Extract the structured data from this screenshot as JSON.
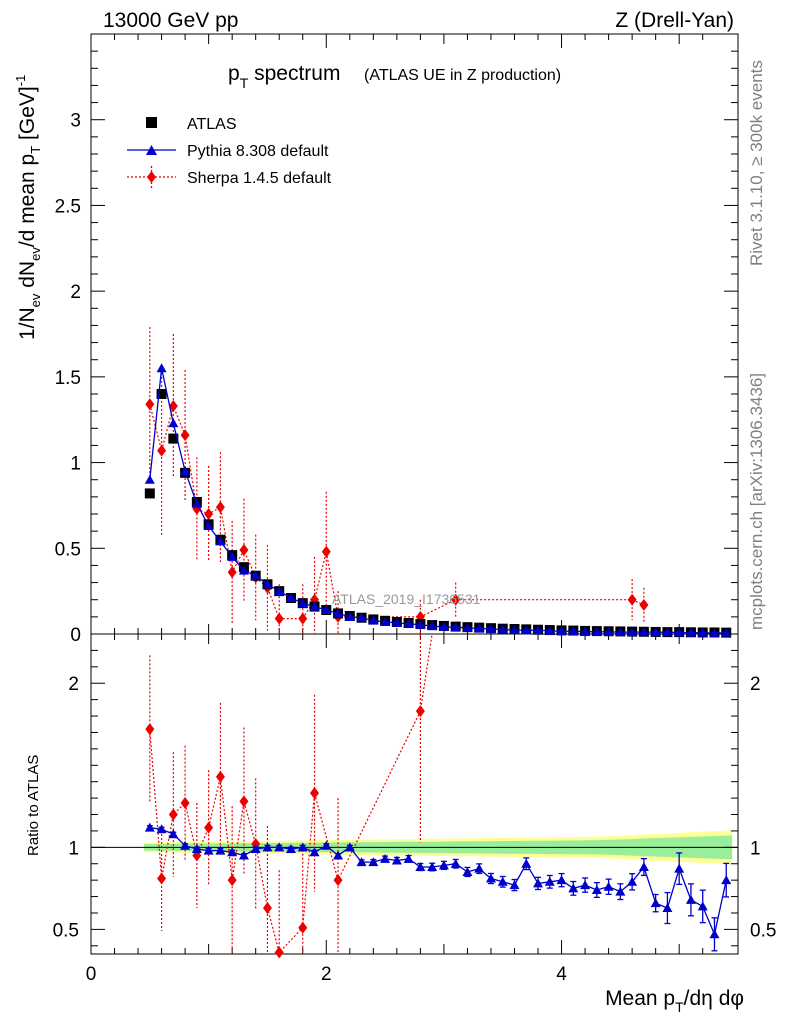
{
  "header": {
    "left": "13000 GeV pp",
    "right": "Z (Drell-Yan)"
  },
  "title": {
    "main": "p",
    "sub": "T",
    "rest": " spectrum",
    "small": "(ATLAS UE in Z production)"
  },
  "side_labels": {
    "rivet": "Rivet 3.1.10, ≥ 300k events",
    "mcplots": "mcplots.cern.ch [arXiv:1306.3436]"
  },
  "watermark": "ATLAS_2019_I1736531",
  "ylabel_main": "1/N_ev dN_ev/d mean p_T [GeV]^-1",
  "ylabel_ratio": "Ratio to ATLAS",
  "xlabel": "Mean p_T/dη dφ",
  "legend": [
    {
      "key": "atlas",
      "label": "ATLAS"
    },
    {
      "key": "pythia",
      "label": "Pythia 8.308 default"
    },
    {
      "key": "sherpa",
      "label": "Sherpa 1.4.5 default"
    }
  ],
  "colors": {
    "atlas": "#000000",
    "pythia": "#0000cc",
    "sherpa": "#ee0000",
    "band_outer": "#ffff99",
    "band_inner": "#99ee99"
  },
  "chart_data": {
    "type": "line",
    "title": "p_T spectrum (ATLAS UE in Z production)",
    "xlabel": "Mean p_T/dη dφ",
    "ylabel": "1/N_ev dN_ev/d mean p_T [GeV]^-1",
    "xlim": [
      0,
      5.5
    ],
    "ylim_main": [
      0,
      3.5
    ],
    "ylim_ratio": [
      0.35,
      2.3
    ],
    "main_yticks": [
      0,
      0.5,
      1,
      1.5,
      2,
      2.5,
      3
    ],
    "main_yticklabels": [
      "0",
      "0.5",
      "1",
      "1.5",
      "2",
      "2.5",
      "3"
    ],
    "ratio_yticks": [
      0.5,
      1,
      2
    ],
    "ratio_yticklabels": [
      "0.5",
      "1",
      "2"
    ],
    "xticks": [
      0,
      2,
      4
    ],
    "xticklabels": [
      "0",
      "2",
      "4"
    ],
    "atlas": {
      "x": [
        0.5,
        0.6,
        0.7,
        0.8,
        0.9,
        1.0,
        1.1,
        1.2,
        1.3,
        1.4,
        1.5,
        1.6,
        1.7,
        1.8,
        1.9,
        2.0,
        2.1,
        2.2,
        2.3,
        2.4,
        2.5,
        2.6,
        2.7,
        2.8,
        2.9,
        3.0,
        3.1,
        3.2,
        3.3,
        3.4,
        3.5,
        3.6,
        3.7,
        3.8,
        3.9,
        4.0,
        4.1,
        4.2,
        4.3,
        4.4,
        4.5,
        4.6,
        4.7,
        4.8,
        4.9,
        5.0,
        5.1,
        5.2,
        5.3,
        5.4
      ],
      "y": [
        0.82,
        1.4,
        1.14,
        0.94,
        0.77,
        0.64,
        0.55,
        0.46,
        0.39,
        0.34,
        0.29,
        0.25,
        0.21,
        0.18,
        0.16,
        0.14,
        0.12,
        0.105,
        0.095,
        0.085,
        0.077,
        0.07,
        0.064,
        0.058,
        0.052,
        0.047,
        0.043,
        0.04,
        0.037,
        0.034,
        0.031,
        0.029,
        0.027,
        0.025,
        0.023,
        0.021,
        0.02,
        0.018,
        0.017,
        0.016,
        0.015,
        0.014,
        0.013,
        0.012,
        0.011,
        0.011,
        0.01,
        0.009,
        0.009,
        0.008
      ]
    },
    "pythia": {
      "x": [
        0.5,
        0.6,
        0.7,
        0.8,
        0.9,
        1.0,
        1.1,
        1.2,
        1.3,
        1.4,
        1.5,
        1.6,
        1.7,
        1.8,
        1.9,
        2.0,
        2.1,
        2.2,
        2.3,
        2.4,
        2.5,
        2.6,
        2.7,
        2.8,
        2.9,
        3.0,
        3.1,
        3.2,
        3.3,
        3.4,
        3.5,
        3.6,
        3.7,
        3.8,
        3.9,
        4.0,
        4.1,
        4.2,
        4.3,
        4.4,
        4.5,
        4.6,
        4.7,
        4.8,
        4.9,
        5.0,
        5.1,
        5.2,
        5.3,
        5.4
      ],
      "y": [
        0.9,
        1.55,
        1.23,
        0.95,
        0.76,
        0.63,
        0.54,
        0.45,
        0.37,
        0.34,
        0.29,
        0.25,
        0.21,
        0.18,
        0.16,
        0.14,
        0.12,
        0.1,
        0.095,
        0.078,
        0.071,
        0.065,
        0.059,
        0.054,
        0.046,
        0.042,
        0.039,
        0.036,
        0.032,
        0.029,
        0.026,
        0.023,
        0.021,
        0.022,
        0.018,
        0.017,
        0.016,
        0.014,
        0.013,
        0.012,
        0.011,
        0.011,
        0.011,
        0.011,
        0.01,
        0.009,
        0.008,
        0.007,
        0.005,
        0.007
      ]
    },
    "sherpa": {
      "x": [
        0.5,
        0.6,
        0.7,
        0.8,
        0.9,
        1.0,
        1.1,
        1.2,
        1.3,
        1.4,
        1.5,
        1.6,
        1.8,
        1.9,
        2.0,
        2.1,
        2.8,
        3.1,
        4.6,
        4.7
      ],
      "y": [
        1.34,
        1.07,
        1.33,
        1.16,
        0.73,
        0.7,
        0.74,
        0.36,
        0.49,
        0.33,
        0.27,
        0.09,
        0.09,
        0.2,
        0.48,
        0.1,
        0.1,
        0.2,
        0.2,
        0.17
      ]
    },
    "ratio": {
      "pythia": [
        1.12,
        1.11,
        1.08,
        1.01,
        0.99,
        0.98,
        0.98,
        0.97,
        0.95,
        0.99,
        1.0,
        1.0,
        0.99,
        1.0,
        0.97,
        1.01,
        0.95,
        1.0,
        0.91,
        0.91,
        0.93,
        0.92,
        0.93,
        0.88,
        0.88,
        0.89,
        0.9,
        0.85,
        0.87,
        0.81,
        0.79,
        0.77,
        0.9,
        0.78,
        0.79,
        0.8,
        0.75,
        0.77,
        0.74,
        0.76,
        0.73,
        0.79,
        0.88,
        0.66,
        0.63,
        0.87,
        0.68,
        0.64,
        0.47,
        0.8
      ],
      "sherpa_x": [
        0.5,
        0.6,
        0.7,
        0.8,
        0.9,
        1.0,
        1.1,
        1.2,
        1.3,
        1.4,
        1.5,
        1.6,
        1.8,
        1.9,
        2.1,
        2.8
      ],
      "sherpa": [
        1.72,
        0.81,
        1.2,
        1.27,
        0.95,
        1.12,
        1.43,
        0.8,
        1.28,
        1.02,
        0.63,
        0.36,
        0.51,
        1.33,
        0.8,
        1.83
      ]
    }
  }
}
